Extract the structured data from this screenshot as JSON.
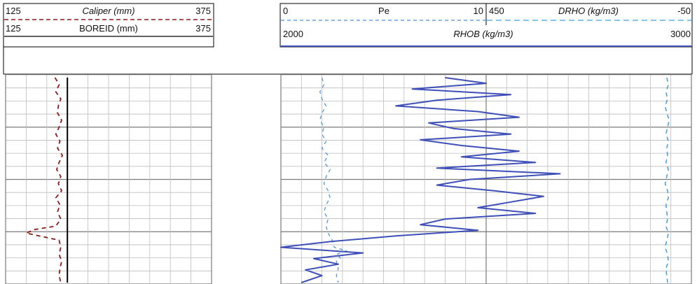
{
  "header": {
    "track1": {
      "caliper": {
        "min": "125",
        "label": "Caliper (mm)",
        "max": "375"
      },
      "boreid": {
        "min": "125",
        "label": "BOREID (mm)",
        "max": "375"
      }
    },
    "track2": {
      "pe": {
        "min": "0",
        "label": "Pe",
        "max": "10"
      },
      "drho": {
        "min": "450",
        "label": "DRHO (kg/m3)",
        "max": "-50"
      },
      "rhob": {
        "min": "2000",
        "label": "RHOB (kg/m3)",
        "max": "3000"
      }
    }
  },
  "colors": {
    "caliper": "#8b1a1a",
    "boreid": "#000000",
    "pe": "#4a90d9",
    "drho": "#3fa0e0",
    "rhob": "#3f4fb8",
    "grid": "#bdbdbd",
    "major": "#7a7a7a"
  },
  "chart_data": {
    "type": "line",
    "depth_axis": "relative sample index (top to bottom), no depth labels shown",
    "series": [
      {
        "name": "Caliper (mm)",
        "range": [
          125,
          375
        ],
        "line_style": "dashed",
        "depth": [
          0,
          10,
          20,
          30,
          40,
          50,
          60,
          70,
          80,
          90,
          100,
          110,
          120,
          130,
          140,
          150,
          160,
          170,
          180,
          190,
          200,
          210,
          215,
          220,
          225,
          230,
          240,
          250,
          260,
          270,
          280,
          290
        ],
        "values": [
          185,
          190,
          186,
          192,
          189,
          188,
          193,
          190,
          186,
          191,
          188,
          194,
          190,
          187,
          192,
          189,
          193,
          186,
          191,
          188,
          192,
          186,
          160,
          150,
          170,
          190,
          192,
          190,
          193,
          191,
          190,
          192
        ]
      },
      {
        "name": "BOREID (mm)",
        "range": [
          125,
          375
        ],
        "line_style": "solid",
        "depth": [
          0,
          290
        ],
        "values": [
          200,
          200
        ]
      },
      {
        "name": "Pe",
        "range": [
          0,
          10
        ],
        "line_style": "dashed",
        "depth": [
          0,
          10,
          20,
          30,
          40,
          50,
          60,
          70,
          80,
          90,
          100,
          110,
          120,
          130,
          140,
          150,
          160,
          170,
          180,
          190,
          200,
          210,
          220,
          230,
          240,
          245,
          250,
          255,
          260,
          270,
          280,
          290
        ],
        "values": [
          2.0,
          2.1,
          1.9,
          2.0,
          2.2,
          2.0,
          1.9,
          2.1,
          2.0,
          2.2,
          2.0,
          2.3,
          2.1,
          2.4,
          2.2,
          2.1,
          2.3,
          2.4,
          2.2,
          2.1,
          2.3,
          2.2,
          2.3,
          2.5,
          2.6,
          3.2,
          2.7,
          2.9,
          2.7,
          2.8,
          2.7,
          2.8
        ]
      },
      {
        "name": "RHOB (kg/m3)",
        "range": [
          2000,
          3000
        ],
        "line_style": "solid",
        "depth": [
          0,
          8,
          16,
          24,
          32,
          40,
          48,
          56,
          64,
          72,
          80,
          88,
          96,
          104,
          112,
          120,
          128,
          136,
          144,
          152,
          160,
          168,
          176,
          184,
          192,
          200,
          208,
          216,
          224,
          232,
          240,
          248,
          256,
          264,
          272,
          280,
          290
        ],
        "values": [
          2400,
          2500,
          2320,
          2560,
          2380,
          2280,
          2480,
          2580,
          2360,
          2420,
          2560,
          2340,
          2440,
          2580,
          2440,
          2620,
          2380,
          2680,
          2460,
          2380,
          2520,
          2640,
          2560,
          2480,
          2620,
          2400,
          2340,
          2480,
          2280,
          2120,
          2000,
          2200,
          2080,
          2140,
          2060,
          2100,
          2050
        ]
      },
      {
        "name": "DRHO (kg/m3)",
        "range": [
          450,
          -50
        ],
        "line_style": "dashed",
        "depth": [
          0,
          10,
          20,
          30,
          40,
          50,
          60,
          70,
          80,
          90,
          100,
          110,
          120,
          130,
          140,
          150,
          160,
          170,
          180,
          190,
          200,
          210,
          220,
          230,
          240,
          250,
          260,
          270,
          280,
          290
        ],
        "values": [
          10,
          6,
          12,
          8,
          14,
          10,
          4,
          8,
          12,
          6,
          10,
          8,
          12,
          6,
          10,
          14,
          8,
          6,
          12,
          10,
          8,
          12,
          6,
          10,
          14,
          8,
          6,
          12,
          10,
          8
        ]
      }
    ]
  }
}
